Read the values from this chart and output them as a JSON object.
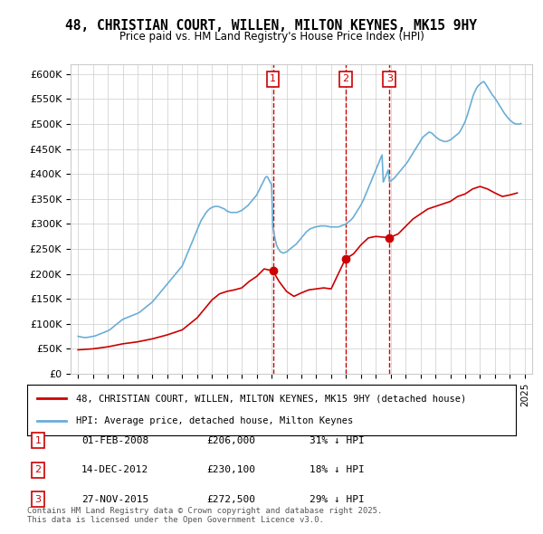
{
  "title": "48, CHRISTIAN COURT, WILLEN, MILTON KEYNES, MK15 9HY",
  "subtitle": "Price paid vs. HM Land Registry's House Price Index (HPI)",
  "ylabel_ticks": [
    "£0",
    "£50K",
    "£100K",
    "£150K",
    "£200K",
    "£250K",
    "£300K",
    "£350K",
    "£400K",
    "£450K",
    "£500K",
    "£550K",
    "£600K"
  ],
  "ytick_values": [
    0,
    50000,
    100000,
    150000,
    200000,
    250000,
    300000,
    350000,
    400000,
    450000,
    500000,
    550000,
    600000
  ],
  "ylim": [
    0,
    620000
  ],
  "xlim_start": 1994.5,
  "xlim_end": 2025.5,
  "legend_price_paid": "48, CHRISTIAN COURT, WILLEN, MILTON KEYNES, MK15 9HY (detached house)",
  "legend_hpi": "HPI: Average price, detached house, Milton Keynes",
  "transactions": [
    {
      "num": 1,
      "date": "01-FEB-2008",
      "price": "£206,000",
      "hpi_note": "31% ↓ HPI",
      "year": 2008.09
    },
    {
      "num": 2,
      "date": "14-DEC-2012",
      "price": "£230,100",
      "hpi_note": "18% ↓ HPI",
      "year": 2012.96
    },
    {
      "num": 3,
      "date": "27-NOV-2015",
      "price": "£272,500",
      "hpi_note": "29% ↓ HPI",
      "year": 2015.91
    }
  ],
  "transaction_prices": [
    206000,
    230100,
    272500
  ],
  "footer": "Contains HM Land Registry data © Crown copyright and database right 2025.\nThis data is licensed under the Open Government Licence v3.0.",
  "hpi_color": "#6baed6",
  "price_color": "#cc0000",
  "vline_color": "#cc0000",
  "background_color": "#ffffff",
  "hpi_data": {
    "years": [
      1995.0,
      1995.08,
      1995.17,
      1995.25,
      1995.33,
      1995.42,
      1995.5,
      1995.58,
      1995.67,
      1995.75,
      1995.83,
      1995.92,
      1996.0,
      1996.08,
      1996.17,
      1996.25,
      1996.33,
      1996.42,
      1996.5,
      1996.58,
      1996.67,
      1996.75,
      1996.83,
      1996.92,
      1997.0,
      1997.08,
      1997.17,
      1997.25,
      1997.33,
      1997.42,
      1997.5,
      1997.58,
      1997.67,
      1997.75,
      1997.83,
      1997.92,
      1998.0,
      1998.08,
      1998.17,
      1998.25,
      1998.33,
      1998.42,
      1998.5,
      1998.58,
      1998.67,
      1998.75,
      1998.83,
      1998.92,
      1999.0,
      1999.08,
      1999.17,
      1999.25,
      1999.33,
      1999.42,
      1999.5,
      1999.58,
      1999.67,
      1999.75,
      1999.83,
      1999.92,
      2000.0,
      2000.08,
      2000.17,
      2000.25,
      2000.33,
      2000.42,
      2000.5,
      2000.58,
      2000.67,
      2000.75,
      2000.83,
      2000.92,
      2001.0,
      2001.08,
      2001.17,
      2001.25,
      2001.33,
      2001.42,
      2001.5,
      2001.58,
      2001.67,
      2001.75,
      2001.83,
      2001.92,
      2002.0,
      2002.08,
      2002.17,
      2002.25,
      2002.33,
      2002.42,
      2002.5,
      2002.58,
      2002.67,
      2002.75,
      2002.83,
      2002.92,
      2003.0,
      2003.08,
      2003.17,
      2003.25,
      2003.33,
      2003.42,
      2003.5,
      2003.58,
      2003.67,
      2003.75,
      2003.83,
      2003.92,
      2004.0,
      2004.08,
      2004.17,
      2004.25,
      2004.33,
      2004.42,
      2004.5,
      2004.58,
      2004.67,
      2004.75,
      2004.83,
      2004.92,
      2005.0,
      2005.08,
      2005.17,
      2005.25,
      2005.33,
      2005.42,
      2005.5,
      2005.58,
      2005.67,
      2005.75,
      2005.83,
      2005.92,
      2006.0,
      2006.08,
      2006.17,
      2006.25,
      2006.33,
      2006.42,
      2006.5,
      2006.58,
      2006.67,
      2006.75,
      2006.83,
      2006.92,
      2007.0,
      2007.08,
      2007.17,
      2007.25,
      2007.33,
      2007.42,
      2007.5,
      2007.58,
      2007.67,
      2007.75,
      2007.83,
      2007.92,
      2008.0,
      2008.08,
      2008.17,
      2008.25,
      2008.33,
      2008.42,
      2008.5,
      2008.58,
      2008.67,
      2008.75,
      2008.83,
      2008.92,
      2009.0,
      2009.08,
      2009.17,
      2009.25,
      2009.33,
      2009.42,
      2009.5,
      2009.58,
      2009.67,
      2009.75,
      2009.83,
      2009.92,
      2010.0,
      2010.08,
      2010.17,
      2010.25,
      2010.33,
      2010.42,
      2010.5,
      2010.58,
      2010.67,
      2010.75,
      2010.83,
      2010.92,
      2011.0,
      2011.08,
      2011.17,
      2011.25,
      2011.33,
      2011.42,
      2011.5,
      2011.58,
      2011.67,
      2011.75,
      2011.83,
      2011.92,
      2012.0,
      2012.08,
      2012.17,
      2012.25,
      2012.33,
      2012.42,
      2012.5,
      2012.58,
      2012.67,
      2012.75,
      2012.83,
      2012.92,
      2013.0,
      2013.08,
      2013.17,
      2013.25,
      2013.33,
      2013.42,
      2013.5,
      2013.58,
      2013.67,
      2013.75,
      2013.83,
      2013.92,
      2014.0,
      2014.08,
      2014.17,
      2014.25,
      2014.33,
      2014.42,
      2014.5,
      2014.58,
      2014.67,
      2014.75,
      2014.83,
      2014.92,
      2015.0,
      2015.08,
      2015.17,
      2015.25,
      2015.33,
      2015.42,
      2015.5,
      2015.58,
      2015.67,
      2015.75,
      2015.83,
      2015.92,
      2016.0,
      2016.08,
      2016.17,
      2016.25,
      2016.33,
      2016.42,
      2016.5,
      2016.58,
      2016.67,
      2016.75,
      2016.83,
      2016.92,
      2017.0,
      2017.08,
      2017.17,
      2017.25,
      2017.33,
      2017.42,
      2017.5,
      2017.58,
      2017.67,
      2017.75,
      2017.83,
      2017.92,
      2018.0,
      2018.08,
      2018.17,
      2018.25,
      2018.33,
      2018.42,
      2018.5,
      2018.58,
      2018.67,
      2018.75,
      2018.83,
      2018.92,
      2019.0,
      2019.08,
      2019.17,
      2019.25,
      2019.33,
      2019.42,
      2019.5,
      2019.58,
      2019.67,
      2019.75,
      2019.83,
      2019.92,
      2020.0,
      2020.08,
      2020.17,
      2020.25,
      2020.33,
      2020.42,
      2020.5,
      2020.58,
      2020.67,
      2020.75,
      2020.83,
      2020.92,
      2021.0,
      2021.08,
      2021.17,
      2021.25,
      2021.33,
      2021.42,
      2021.5,
      2021.58,
      2021.67,
      2021.75,
      2021.83,
      2021.92,
      2022.0,
      2022.08,
      2022.17,
      2022.25,
      2022.33,
      2022.42,
      2022.5,
      2022.58,
      2022.67,
      2022.75,
      2022.83,
      2022.92,
      2023.0,
      2023.08,
      2023.17,
      2023.25,
      2023.33,
      2023.42,
      2023.5,
      2023.58,
      2023.67,
      2023.75,
      2023.83,
      2023.92,
      2024.0,
      2024.08,
      2024.17,
      2024.25,
      2024.33,
      2024.42,
      2024.5,
      2024.58,
      2024.67,
      2024.75
    ],
    "values": [
      75000,
      74500,
      74000,
      73500,
      73000,
      72800,
      72500,
      72800,
      73000,
      73500,
      74000,
      74500,
      75000,
      75500,
      76000,
      77000,
      78000,
      79000,
      80000,
      81000,
      82000,
      83000,
      84000,
      85000,
      86000,
      87500,
      89000,
      91000,
      93000,
      95000,
      97000,
      99000,
      101000,
      103000,
      105000,
      107000,
      109000,
      110000,
      111000,
      112000,
      113000,
      114000,
      115000,
      116000,
      117000,
      118000,
      119000,
      120000,
      121000,
      122500,
      124000,
      126000,
      128000,
      130000,
      132000,
      134000,
      136000,
      138000,
      140000,
      142000,
      144000,
      147000,
      150000,
      153000,
      156000,
      159000,
      162000,
      165000,
      168000,
      171000,
      174000,
      177000,
      180000,
      183000,
      186000,
      189000,
      192000,
      195000,
      198000,
      201000,
      204000,
      207000,
      210000,
      213000,
      216000,
      222000,
      228000,
      234000,
      240000,
      246000,
      252000,
      258000,
      264000,
      270000,
      276000,
      282000,
      288000,
      294000,
      300000,
      306000,
      310000,
      314000,
      318000,
      322000,
      325000,
      328000,
      330000,
      332000,
      333000,
      334000,
      335000,
      335000,
      335000,
      335000,
      334000,
      333000,
      332000,
      331000,
      330000,
      328000,
      326000,
      325000,
      324000,
      323000,
      323000,
      323000,
      323000,
      323000,
      323000,
      324000,
      325000,
      326000,
      327000,
      329000,
      331000,
      333000,
      335000,
      337000,
      340000,
      343000,
      346000,
      349000,
      352000,
      355000,
      358000,
      363000,
      368000,
      373000,
      378000,
      383000,
      388000,
      393000,
      395000,
      393000,
      388000,
      383000,
      378000,
      295000,
      280000,
      268000,
      258000,
      252000,
      248000,
      245000,
      243000,
      242000,
      242000,
      243000,
      244000,
      246000,
      248000,
      250000,
      252000,
      254000,
      256000,
      258000,
      260000,
      263000,
      266000,
      269000,
      272000,
      275000,
      278000,
      281000,
      284000,
      286000,
      288000,
      290000,
      291000,
      292000,
      293000,
      294000,
      294000,
      295000,
      295000,
      296000,
      296000,
      296000,
      296000,
      296000,
      296000,
      295000,
      295000,
      294000,
      294000,
      294000,
      294000,
      294000,
      294000,
      294000,
      294000,
      295000,
      296000,
      297000,
      298000,
      299000,
      300000,
      302000,
      304000,
      306000,
      308000,
      311000,
      314000,
      318000,
      322000,
      326000,
      330000,
      334000,
      338000,
      343000,
      348000,
      354000,
      360000,
      366000,
      372000,
      378000,
      384000,
      390000,
      396000,
      402000,
      408000,
      414000,
      420000,
      426000,
      432000,
      438000,
      384000,
      390000,
      396000,
      402000,
      408000,
      384000,
      386000,
      388000,
      390000,
      392000,
      395000,
      398000,
      401000,
      404000,
      407000,
      410000,
      413000,
      416000,
      419000,
      422000,
      426000,
      430000,
      434000,
      438000,
      442000,
      446000,
      450000,
      454000,
      458000,
      462000,
      466000,
      470000,
      474000,
      476000,
      478000,
      480000,
      482000,
      484000,
      483000,
      482000,
      480000,
      477000,
      475000,
      473000,
      471000,
      469000,
      468000,
      467000,
      466000,
      465000,
      465000,
      465000,
      466000,
      467000,
      468000,
      470000,
      472000,
      474000,
      476000,
      478000,
      480000,
      482000,
      486000,
      490000,
      495000,
      500000,
      505000,
      512000,
      520000,
      528000,
      536000,
      545000,
      553000,
      560000,
      566000,
      571000,
      575000,
      578000,
      580000,
      582000,
      584000,
      585000,
      582000,
      578000,
      574000,
      570000,
      566000,
      562000,
      558000,
      555000,
      552000,
      548000,
      544000,
      540000,
      536000,
      532000,
      528000,
      524000,
      520000,
      517000,
      514000,
      511000,
      508000,
      506000,
      504000,
      502000,
      501000,
      500000,
      500000,
      500000,
      500000,
      501000
    ]
  },
  "price_paid_data": {
    "years": [
      1995.0,
      1995.5,
      1996.0,
      1996.5,
      1997.0,
      1997.5,
      1998.0,
      1998.5,
      1999.0,
      1999.5,
      2000.0,
      2000.5,
      2001.0,
      2001.5,
      2002.0,
      2002.5,
      2003.0,
      2003.5,
      2004.0,
      2004.5,
      2005.0,
      2005.5,
      2006.0,
      2006.5,
      2007.0,
      2007.5,
      2008.09,
      2008.5,
      2009.0,
      2009.5,
      2010.0,
      2010.5,
      2011.0,
      2011.5,
      2012.0,
      2012.96,
      2013.5,
      2014.0,
      2014.5,
      2015.0,
      2015.91,
      2016.5,
      2017.0,
      2017.5,
      2018.0,
      2018.5,
      2019.0,
      2019.5,
      2020.0,
      2020.5,
      2021.0,
      2021.5,
      2022.0,
      2022.5,
      2023.0,
      2023.5,
      2024.0,
      2024.5
    ],
    "values": [
      48000,
      49000,
      50000,
      52000,
      54000,
      57000,
      60000,
      62000,
      64000,
      67000,
      70000,
      74000,
      78000,
      83000,
      88000,
      100000,
      112000,
      130000,
      148000,
      160000,
      165000,
      168000,
      172000,
      185000,
      195000,
      210000,
      206000,
      185000,
      165000,
      155000,
      162000,
      168000,
      170000,
      172000,
      170000,
      230100,
      240000,
      258000,
      272000,
      275000,
      272500,
      280000,
      295000,
      310000,
      320000,
      330000,
      335000,
      340000,
      345000,
      355000,
      360000,
      370000,
      375000,
      370000,
      362000,
      355000,
      358000,
      362000
    ]
  }
}
